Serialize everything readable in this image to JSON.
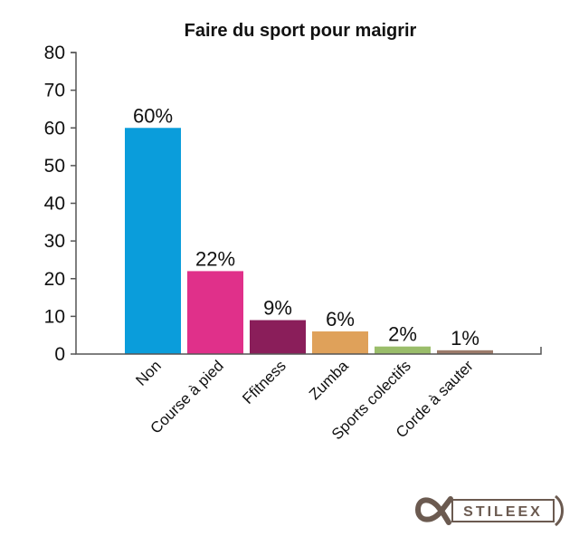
{
  "chart_data": {
    "type": "bar",
    "title": "Faire du sport pour maigrir",
    "xlabel": "",
    "ylabel": "",
    "categories": [
      "Non",
      "Course à pied",
      "Ffitness",
      "Zumba",
      "Sports colectifs",
      "Corde à sauter"
    ],
    "values": [
      60,
      22,
      9,
      6,
      2,
      1
    ],
    "data_labels": [
      "60%",
      "22%",
      "9%",
      "6%",
      "2%",
      "1%"
    ],
    "bar_colors": [
      "#0a9ddb",
      "#e0308a",
      "#8a1e5a",
      "#dfa15a",
      "#9abd6a",
      "#9c7b6a"
    ],
    "ylim": [
      0,
      80
    ],
    "yticks": [
      "0",
      "10",
      "20",
      "30",
      "40",
      "50",
      "60",
      "70",
      "80"
    ],
    "grid": false,
    "legend": "none"
  },
  "brand": {
    "logo_text": "STILEEX",
    "logo_color": "#6b5a50"
  }
}
